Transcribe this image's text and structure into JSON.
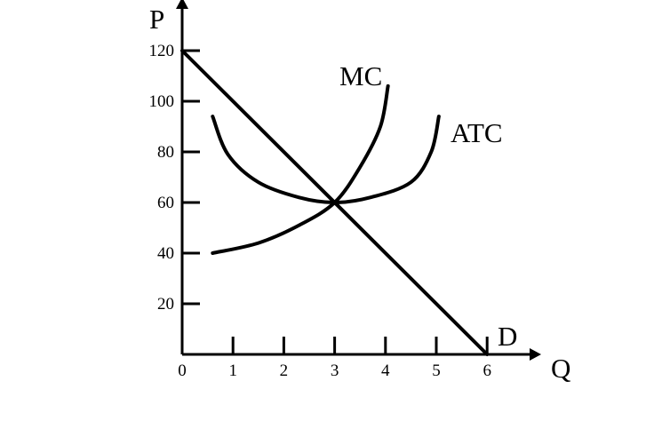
{
  "chart_data": {
    "type": "line",
    "xlabel": "Q",
    "ylabel": "P",
    "xlim": [
      0,
      6
    ],
    "ylim": [
      0,
      120
    ],
    "x_ticks": [
      "0",
      "1",
      "2",
      "3",
      "4",
      "5",
      "6"
    ],
    "y_ticks": [
      "20",
      "40",
      "60",
      "80",
      "100",
      "120"
    ],
    "grid": false,
    "legend": "none",
    "series": [
      {
        "name": "D",
        "label": "D",
        "x": [
          0,
          6
        ],
        "y": [
          120,
          0
        ]
      },
      {
        "name": "MC",
        "label": "MC",
        "x": [
          0.6,
          1.5,
          2.3,
          3,
          3.5,
          3.9,
          4.05
        ],
        "y": [
          40,
          44,
          51,
          60,
          74,
          90,
          106
        ]
      },
      {
        "name": "ATC",
        "label": "ATC",
        "x": [
          0.6,
          0.9,
          1.5,
          2.3,
          3,
          3.7,
          4.5,
          4.9,
          5.05
        ],
        "y": [
          94,
          79,
          68,
          62,
          60,
          62,
          68,
          80,
          94
        ]
      }
    ]
  }
}
